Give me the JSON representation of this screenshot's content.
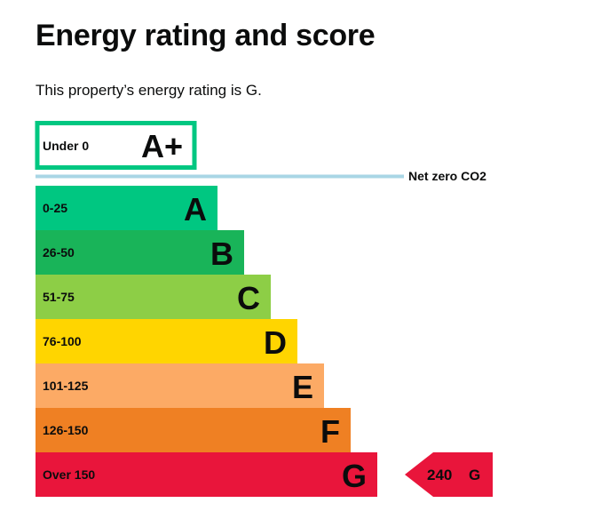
{
  "page": {
    "title": "Energy rating and score",
    "summary": "This property’s energy rating is G."
  },
  "chart_data": {
    "type": "bar",
    "title": "",
    "net_zero_label": "Net zero CO2",
    "a_plus": {
      "range": "Under 0",
      "letter": "A+",
      "color": "#00c781"
    },
    "bands": [
      {
        "letter": "A",
        "range": "0-25",
        "min": 0,
        "max": 25,
        "color": "#00c781"
      },
      {
        "letter": "B",
        "range": "26-50",
        "min": 26,
        "max": 50,
        "color": "#19b459"
      },
      {
        "letter": "C",
        "range": "51-75",
        "min": 51,
        "max": 75,
        "color": "#8dce46"
      },
      {
        "letter": "D",
        "range": "76-100",
        "min": 76,
        "max": 100,
        "color": "#ffd500"
      },
      {
        "letter": "E",
        "range": "101-125",
        "min": 101,
        "max": 125,
        "color": "#fcaa65"
      },
      {
        "letter": "F",
        "range": "126-150",
        "min": 126,
        "max": 150,
        "color": "#ef8023"
      },
      {
        "letter": "G",
        "range": "Over 150",
        "min": 151,
        "max": null,
        "color": "#e9153b"
      }
    ],
    "current": {
      "score": 240,
      "letter": "G",
      "color": "#e9153b"
    }
  }
}
